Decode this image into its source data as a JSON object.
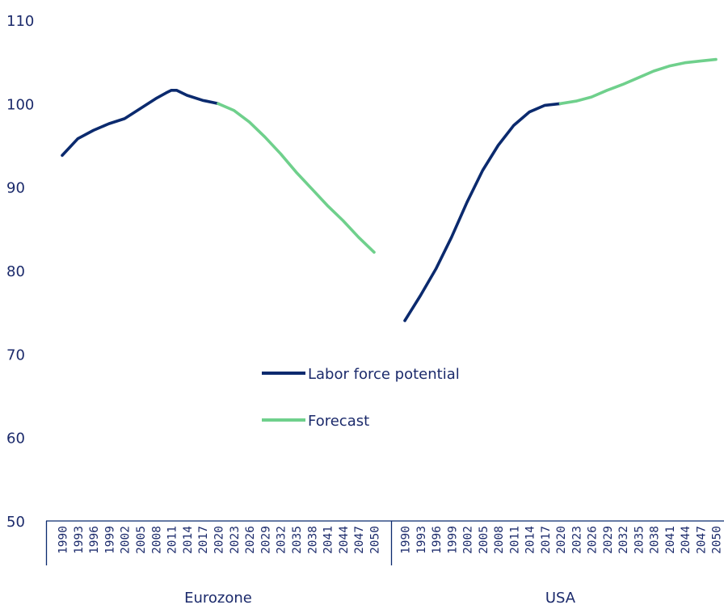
{
  "chart_data": {
    "type": "line",
    "title": "",
    "xlabel": "",
    "ylabel": "",
    "ylim": [
      50,
      110
    ],
    "yticks": [
      50,
      60,
      70,
      80,
      90,
      100,
      110
    ],
    "x_tick_labels": [
      "1990",
      "1993",
      "1996",
      "1999",
      "2002",
      "2005",
      "2008",
      "2011",
      "2014",
      "2017",
      "2020",
      "2023",
      "2026",
      "2029",
      "2032",
      "2035",
      "2038",
      "2041",
      "2044",
      "2047",
      "2050"
    ],
    "groups": [
      "Eurozone",
      "USA"
    ],
    "legend_position": "center",
    "colors": {
      "labor": "#0b2a6e",
      "forecast": "#6fd08c",
      "axis": "#0b2a6e",
      "text": "#1b2a6b"
    },
    "series": [
      {
        "name": "Labor force potential",
        "color": "#0b2a6e",
        "data": {
          "Eurozone": [
            [
              1990,
              93.8
            ],
            [
              1993,
              95.8
            ],
            [
              1996,
              96.8
            ],
            [
              1999,
              97.6
            ],
            [
              2002,
              98.2
            ],
            [
              2005,
              99.4
            ],
            [
              2008,
              100.6
            ],
            [
              2010,
              101.3
            ],
            [
              2011,
              101.6
            ],
            [
              2012,
              101.6
            ],
            [
              2014,
              101.0
            ],
            [
              2017,
              100.4
            ],
            [
              2020,
              100.0
            ]
          ],
          "USA": [
            [
              1990,
              74.0
            ],
            [
              1993,
              77.0
            ],
            [
              1996,
              80.2
            ],
            [
              1999,
              84.0
            ],
            [
              2002,
              88.2
            ],
            [
              2005,
              92.0
            ],
            [
              2008,
              95.0
            ],
            [
              2011,
              97.4
            ],
            [
              2014,
              99.0
            ],
            [
              2017,
              99.8
            ],
            [
              2020,
              100.0
            ]
          ]
        }
      },
      {
        "name": "Forecast",
        "color": "#6fd08c",
        "data": {
          "Eurozone": [
            [
              2020,
              100.0
            ],
            [
              2023,
              99.2
            ],
            [
              2026,
              97.8
            ],
            [
              2029,
              96.0
            ],
            [
              2032,
              94.0
            ],
            [
              2035,
              91.8
            ],
            [
              2038,
              89.8
            ],
            [
              2041,
              87.8
            ],
            [
              2044,
              86.0
            ],
            [
              2047,
              84.0
            ],
            [
              2050,
              82.2
            ]
          ],
          "USA": [
            [
              2020,
              100.0
            ],
            [
              2023,
              100.3
            ],
            [
              2026,
              100.8
            ],
            [
              2029,
              101.6
            ],
            [
              2032,
              102.3
            ],
            [
              2035,
              103.1
            ],
            [
              2038,
              103.9
            ],
            [
              2041,
              104.5
            ],
            [
              2044,
              104.9
            ],
            [
              2047,
              105.1
            ],
            [
              2050,
              105.3
            ]
          ]
        }
      }
    ]
  }
}
